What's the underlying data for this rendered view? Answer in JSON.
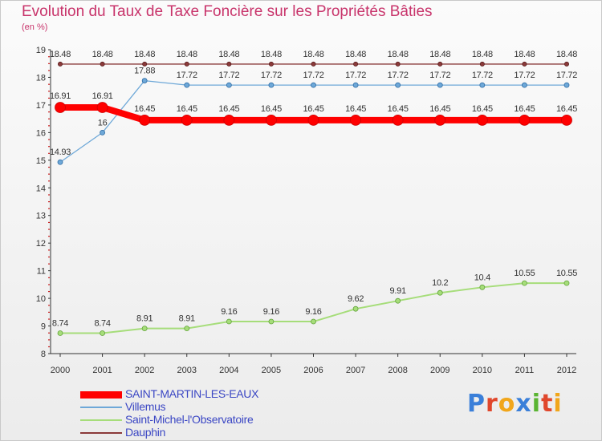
{
  "header": {
    "title": "Evolution du Taux de Taxe Foncière sur les Propriétés Bâties",
    "subtitle": "(en %)"
  },
  "logo": {
    "text": "Proxiti",
    "colors": [
      "#3a7fd9",
      "#e0472c",
      "#f1a61b",
      "#3a7fd9",
      "#5ab432",
      "#e0472c",
      "#f1a61b"
    ]
  },
  "chart_data": {
    "type": "line",
    "x": [
      2000,
      2001,
      2002,
      2003,
      2004,
      2005,
      2006,
      2007,
      2008,
      2009,
      2010,
      2011,
      2012
    ],
    "ylim": [
      8,
      19
    ],
    "yticks": [
      8,
      9,
      10,
      11,
      12,
      13,
      14,
      15,
      16,
      17,
      18,
      19
    ],
    "grid": false,
    "legend_position": "bottom-left",
    "series": [
      {
        "name": "SAINT-MARTIN-LES-EAUX",
        "color": "#ff0000",
        "values": [
          16.91,
          16.91,
          16.45,
          16.45,
          16.45,
          16.45,
          16.45,
          16.45,
          16.45,
          16.45,
          16.45,
          16.45,
          16.45
        ],
        "labels": [
          "16.91",
          "16.91",
          "16.45",
          "16.45",
          "16.45",
          "16.45",
          "16.45",
          "16.45",
          "16.45",
          "16.45",
          "16.45",
          "16.45",
          "16.45"
        ]
      },
      {
        "name": "Villemus",
        "color": "#6ea8d8",
        "values": [
          14.93,
          16,
          17.88,
          17.72,
          17.72,
          17.72,
          17.72,
          17.72,
          17.72,
          17.72,
          17.72,
          17.72,
          17.72
        ],
        "labels": [
          "14.93",
          "16",
          "17.88",
          "17.72",
          "17.72",
          "17.72",
          "17.72",
          "17.72",
          "17.72",
          "17.72",
          "17.72",
          "17.72",
          "17.72"
        ]
      },
      {
        "name": "Saint-Michel-l'Observatoire",
        "color": "#a6dd7a",
        "values": [
          8.74,
          8.74,
          8.91,
          8.91,
          9.16,
          9.16,
          9.16,
          9.62,
          9.91,
          10.2,
          10.4,
          10.55,
          10.55
        ],
        "labels": [
          "8.74",
          "8.74",
          "8.91",
          "8.91",
          "9.16",
          "9.16",
          "9.16",
          "9.62",
          "9.91",
          "10.2",
          "10.4",
          "10.55",
          "10.55"
        ]
      },
      {
        "name": "Dauphin",
        "color": "#8b3a3a",
        "values": [
          18.48,
          18.48,
          18.48,
          18.48,
          18.48,
          18.48,
          18.48,
          18.48,
          18.48,
          18.48,
          18.48,
          18.48,
          18.48
        ],
        "labels": [
          "18.48",
          "18.48",
          "18.48",
          "18.48",
          "18.48",
          "18.48",
          "18.48",
          "18.48",
          "18.48",
          "18.48",
          "18.48",
          "18.48",
          "18.48"
        ]
      }
    ]
  }
}
